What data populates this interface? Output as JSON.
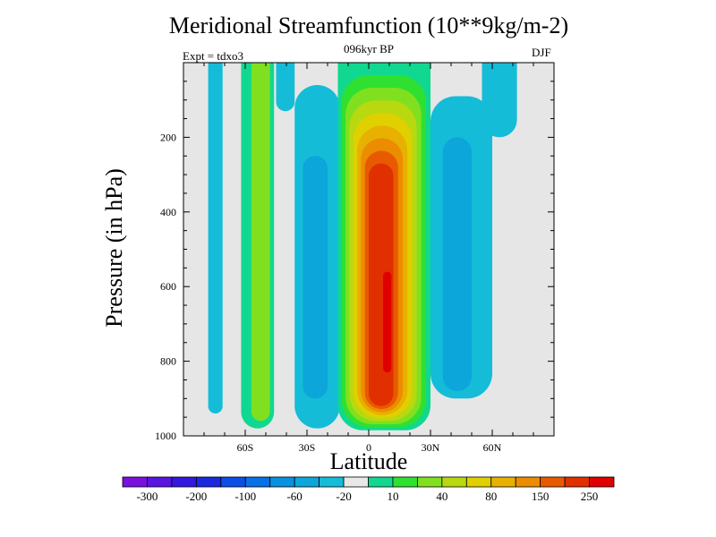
{
  "chart_data": {
    "type": "heatmap",
    "title": "Meridional Streamfunction (10**9kg/m-2)",
    "subtitle": "096kyr BP",
    "left_label": "Expt = tdxo3",
    "right_label": "DJF",
    "xlabel": "Latitude",
    "ylabel": "Pressure (in hPa)",
    "xlim": [
      -90,
      90
    ],
    "ylim": [
      1000,
      0
    ],
    "x_ticks": [
      {
        "value": -60,
        "label": "60S"
      },
      {
        "value": -30,
        "label": "30S"
      },
      {
        "value": 0,
        "label": "0"
      },
      {
        "value": 30,
        "label": "30N"
      },
      {
        "value": 60,
        "label": "60N"
      }
    ],
    "y_ticks": [
      {
        "value": 200,
        "label": "200"
      },
      {
        "value": 400,
        "label": "400"
      },
      {
        "value": 600,
        "label": "600"
      },
      {
        "value": 800,
        "label": "800"
      },
      {
        "value": 1000,
        "label": "1000"
      }
    ],
    "background_color": "#e6e6e6",
    "colorbar": {
      "levels": [
        -300,
        -250,
        -200,
        -150,
        -100,
        -80,
        -60,
        -40,
        -20,
        -10,
        10,
        20,
        40,
        60,
        80,
        100,
        150,
        200,
        250,
        300
      ],
      "labels": [
        "-300",
        "-200",
        "-100",
        "-60",
        "-20",
        "10",
        "40",
        "80",
        "150",
        "250"
      ],
      "colors": [
        "#7a10e0",
        "#5a14e0",
        "#3418e0",
        "#1a28e0",
        "#0a4ee6",
        "#0670e6",
        "#0890e0",
        "#0ca6da",
        "#14bcd8",
        "#e8e8e8",
        "#10d890",
        "#30e030",
        "#80e020",
        "#b8d810",
        "#e0d000",
        "#e8b000",
        "#ec8c00",
        "#e85a00",
        "#e03000",
        "#e00000"
      ]
    },
    "features": [
      {
        "name": "southern-negative-cell",
        "sign": "negative",
        "value": -20,
        "lat_range": [
          -78,
          -71
        ],
        "p_range": [
          0,
          940
        ]
      },
      {
        "name": "southern-positive-cell-outer",
        "sign": "positive",
        "value": 10,
        "lat_range": [
          -62,
          -46
        ],
        "p_range": [
          0,
          980
        ]
      },
      {
        "name": "southern-positive-cell-inner",
        "sign": "positive",
        "value": 40,
        "lat_range": [
          -57,
          -48
        ],
        "p_range": [
          0,
          960
        ]
      },
      {
        "name": "upper-negative-band",
        "sign": "negative",
        "value": -20,
        "lat_range": [
          -45,
          -36
        ],
        "p_range": [
          0,
          130
        ]
      },
      {
        "name": "midlatitude-negative-cell",
        "sign": "negative",
        "value": -20,
        "lat_range": [
          -36,
          -14
        ],
        "p_range": [
          60,
          980
        ]
      },
      {
        "name": "midlatitude-negative-cell-core",
        "sign": "negative",
        "value": -40,
        "lat_range": [
          -32,
          -20
        ],
        "p_range": [
          250,
          900
        ]
      },
      {
        "name": "hadley-cell-outer",
        "sign": "positive",
        "value": 10,
        "lat_range": [
          -15,
          30
        ],
        "p_range": [
          0,
          985
        ]
      },
      {
        "name": "hadley-cell-core",
        "sign": "positive",
        "value": 250,
        "lat_range": [
          0,
          12
        ],
        "p_range": [
          270,
          920
        ]
      },
      {
        "name": "hadley-cell-max",
        "sign": "positive",
        "value": 300,
        "lat_range": [
          7,
          11
        ],
        "p_range": [
          560,
          830
        ]
      },
      {
        "name": "ferrel-negative-cell",
        "sign": "negative",
        "value": -20,
        "lat_range": [
          30,
          60
        ],
        "p_range": [
          90,
          900
        ]
      },
      {
        "name": "ferrel-negative-cell-core",
        "sign": "negative",
        "value": -40,
        "lat_range": [
          36,
          50
        ],
        "p_range": [
          200,
          880
        ]
      },
      {
        "name": "northern-upper-negative",
        "sign": "negative",
        "value": -20,
        "lat_range": [
          55,
          72
        ],
        "p_range": [
          0,
          200
        ]
      }
    ]
  }
}
